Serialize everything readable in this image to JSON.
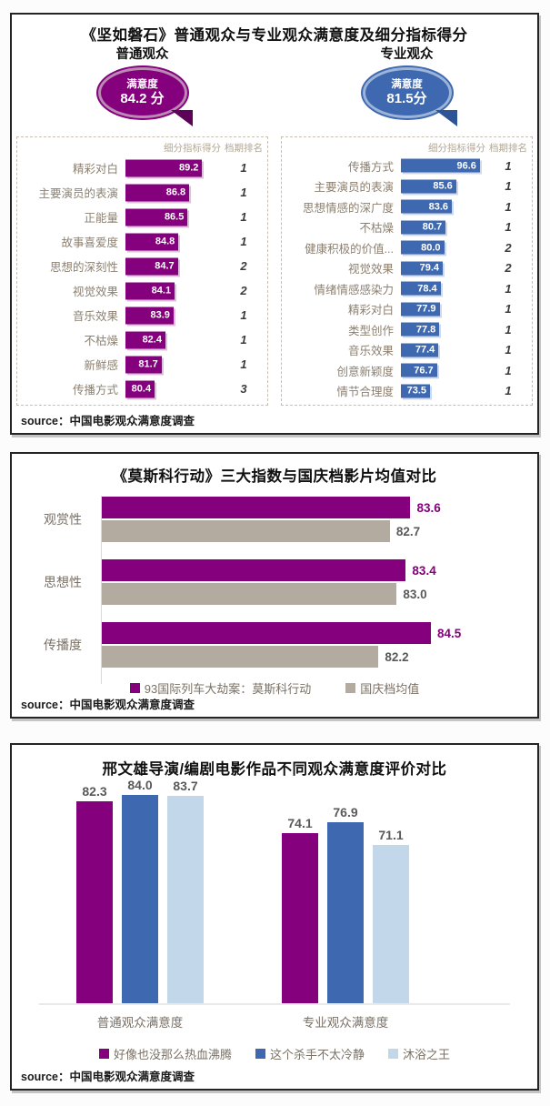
{
  "colors": {
    "purple": "#84007C",
    "blue": "#3E68B0",
    "light_blue": "#C3D7EB",
    "gray_bar": "#B3AAA0",
    "label_text": "#8C8070",
    "value_text_gray": "#595959"
  },
  "chart_data": [
    {
      "type": "bar",
      "orientation": "horizontal",
      "title": "《坚如磐石》普通观众与专业观众满意度及细分指标得分",
      "source": "source：中国电影观众满意度调查",
      "panels": [
        {
          "audience": "普通观众",
          "summary_label": "满意度",
          "summary_value": "84.2 分",
          "columns": [
            "细分指标得分",
            "档期排名"
          ],
          "axis_range": [
            75,
            93
          ],
          "bar_color": "#84007C",
          "rows": [
            {
              "label": "精彩对白",
              "value": 89.2,
              "rank": "1"
            },
            {
              "label": "主要演员的表演",
              "value": 86.8,
              "rank": "1"
            },
            {
              "label": "正能量",
              "value": 86.5,
              "rank": "1"
            },
            {
              "label": "故事喜爱度",
              "value": 84.8,
              "rank": "1"
            },
            {
              "label": "思想的深刻性",
              "value": 84.7,
              "rank": "2"
            },
            {
              "label": "视觉效果",
              "value": 84.1,
              "rank": "2"
            },
            {
              "label": "音乐效果",
              "value": 83.9,
              "rank": "1"
            },
            {
              "label": "不枯燥",
              "value": 82.4,
              "rank": "1"
            },
            {
              "label": "新鲜感",
              "value": 81.7,
              "rank": "1"
            },
            {
              "label": "传播方式",
              "value": 80.4,
              "rank": "3"
            }
          ]
        },
        {
          "audience": "专业观众",
          "summary_label": "满意度",
          "summary_value": "81.5分",
          "columns": [
            "细分指标得分",
            "档期排名"
          ],
          "axis_range": [
            60,
            100
          ],
          "bar_color": "#3E68B0",
          "rows": [
            {
              "label": "传播方式",
              "value": 96.6,
              "rank": "1"
            },
            {
              "label": "主要演员的表演",
              "value": 85.6,
              "rank": "1"
            },
            {
              "label": "思想情感的深广度",
              "value": 83.6,
              "rank": "1"
            },
            {
              "label": "不枯燥",
              "value": 80.7,
              "rank": "1"
            },
            {
              "label": "健康积极的价值...",
              "value": 80.0,
              "rank": "2"
            },
            {
              "label": "视觉效果",
              "value": 79.4,
              "rank": "2"
            },
            {
              "label": "情绪情感感染力",
              "value": 78.4,
              "rank": "1"
            },
            {
              "label": "精彩对白",
              "value": 77.9,
              "rank": "1"
            },
            {
              "label": "类型创作",
              "value": 77.8,
              "rank": "1"
            },
            {
              "label": "音乐效果",
              "value": 77.4,
              "rank": "1"
            },
            {
              "label": "创意新颖度",
              "value": 76.7,
              "rank": "1"
            },
            {
              "label": "情节合理度",
              "value": 73.5,
              "rank": "1"
            }
          ]
        }
      ]
    },
    {
      "type": "bar",
      "orientation": "horizontal",
      "title": "《莫斯科行动》三大指数与国庆档影片均值对比",
      "source": "source：中国电影观众满意度调查",
      "categories": [
        "观赏性",
        "思想性",
        "传播度"
      ],
      "series": [
        {
          "name": "93国际列车大劫案：莫斯科行动",
          "color": "#84007C",
          "values": [
            83.6,
            83.4,
            84.5
          ]
        },
        {
          "name": "国庆档均值",
          "color": "#B3AAA0",
          "values": [
            82.7,
            83.0,
            82.2
          ]
        }
      ],
      "xlim": [
        70,
        85.5
      ],
      "grid": false,
      "legend_position": "bottom"
    },
    {
      "type": "bar",
      "orientation": "vertical",
      "title": "邢文雄导演/编剧电影作品不同观众满意度评价对比",
      "source": "source：中国电影观众满意度调查",
      "categories": [
        "普通观众满意度",
        "专业观众满意度"
      ],
      "series": [
        {
          "name": "好像也没那么热血沸腾",
          "color": "#84007C",
          "values": [
            82.3,
            74.1
          ]
        },
        {
          "name": "这个杀手不太冷静",
          "color": "#3E68B0",
          "values": [
            84.0,
            76.9
          ]
        },
        {
          "name": "沐浴之王",
          "color": "#C3D7EB",
          "values": [
            83.7,
            71.1
          ]
        }
      ],
      "ylim": [
        30,
        88
      ],
      "grid": false,
      "legend_position": "bottom"
    }
  ]
}
